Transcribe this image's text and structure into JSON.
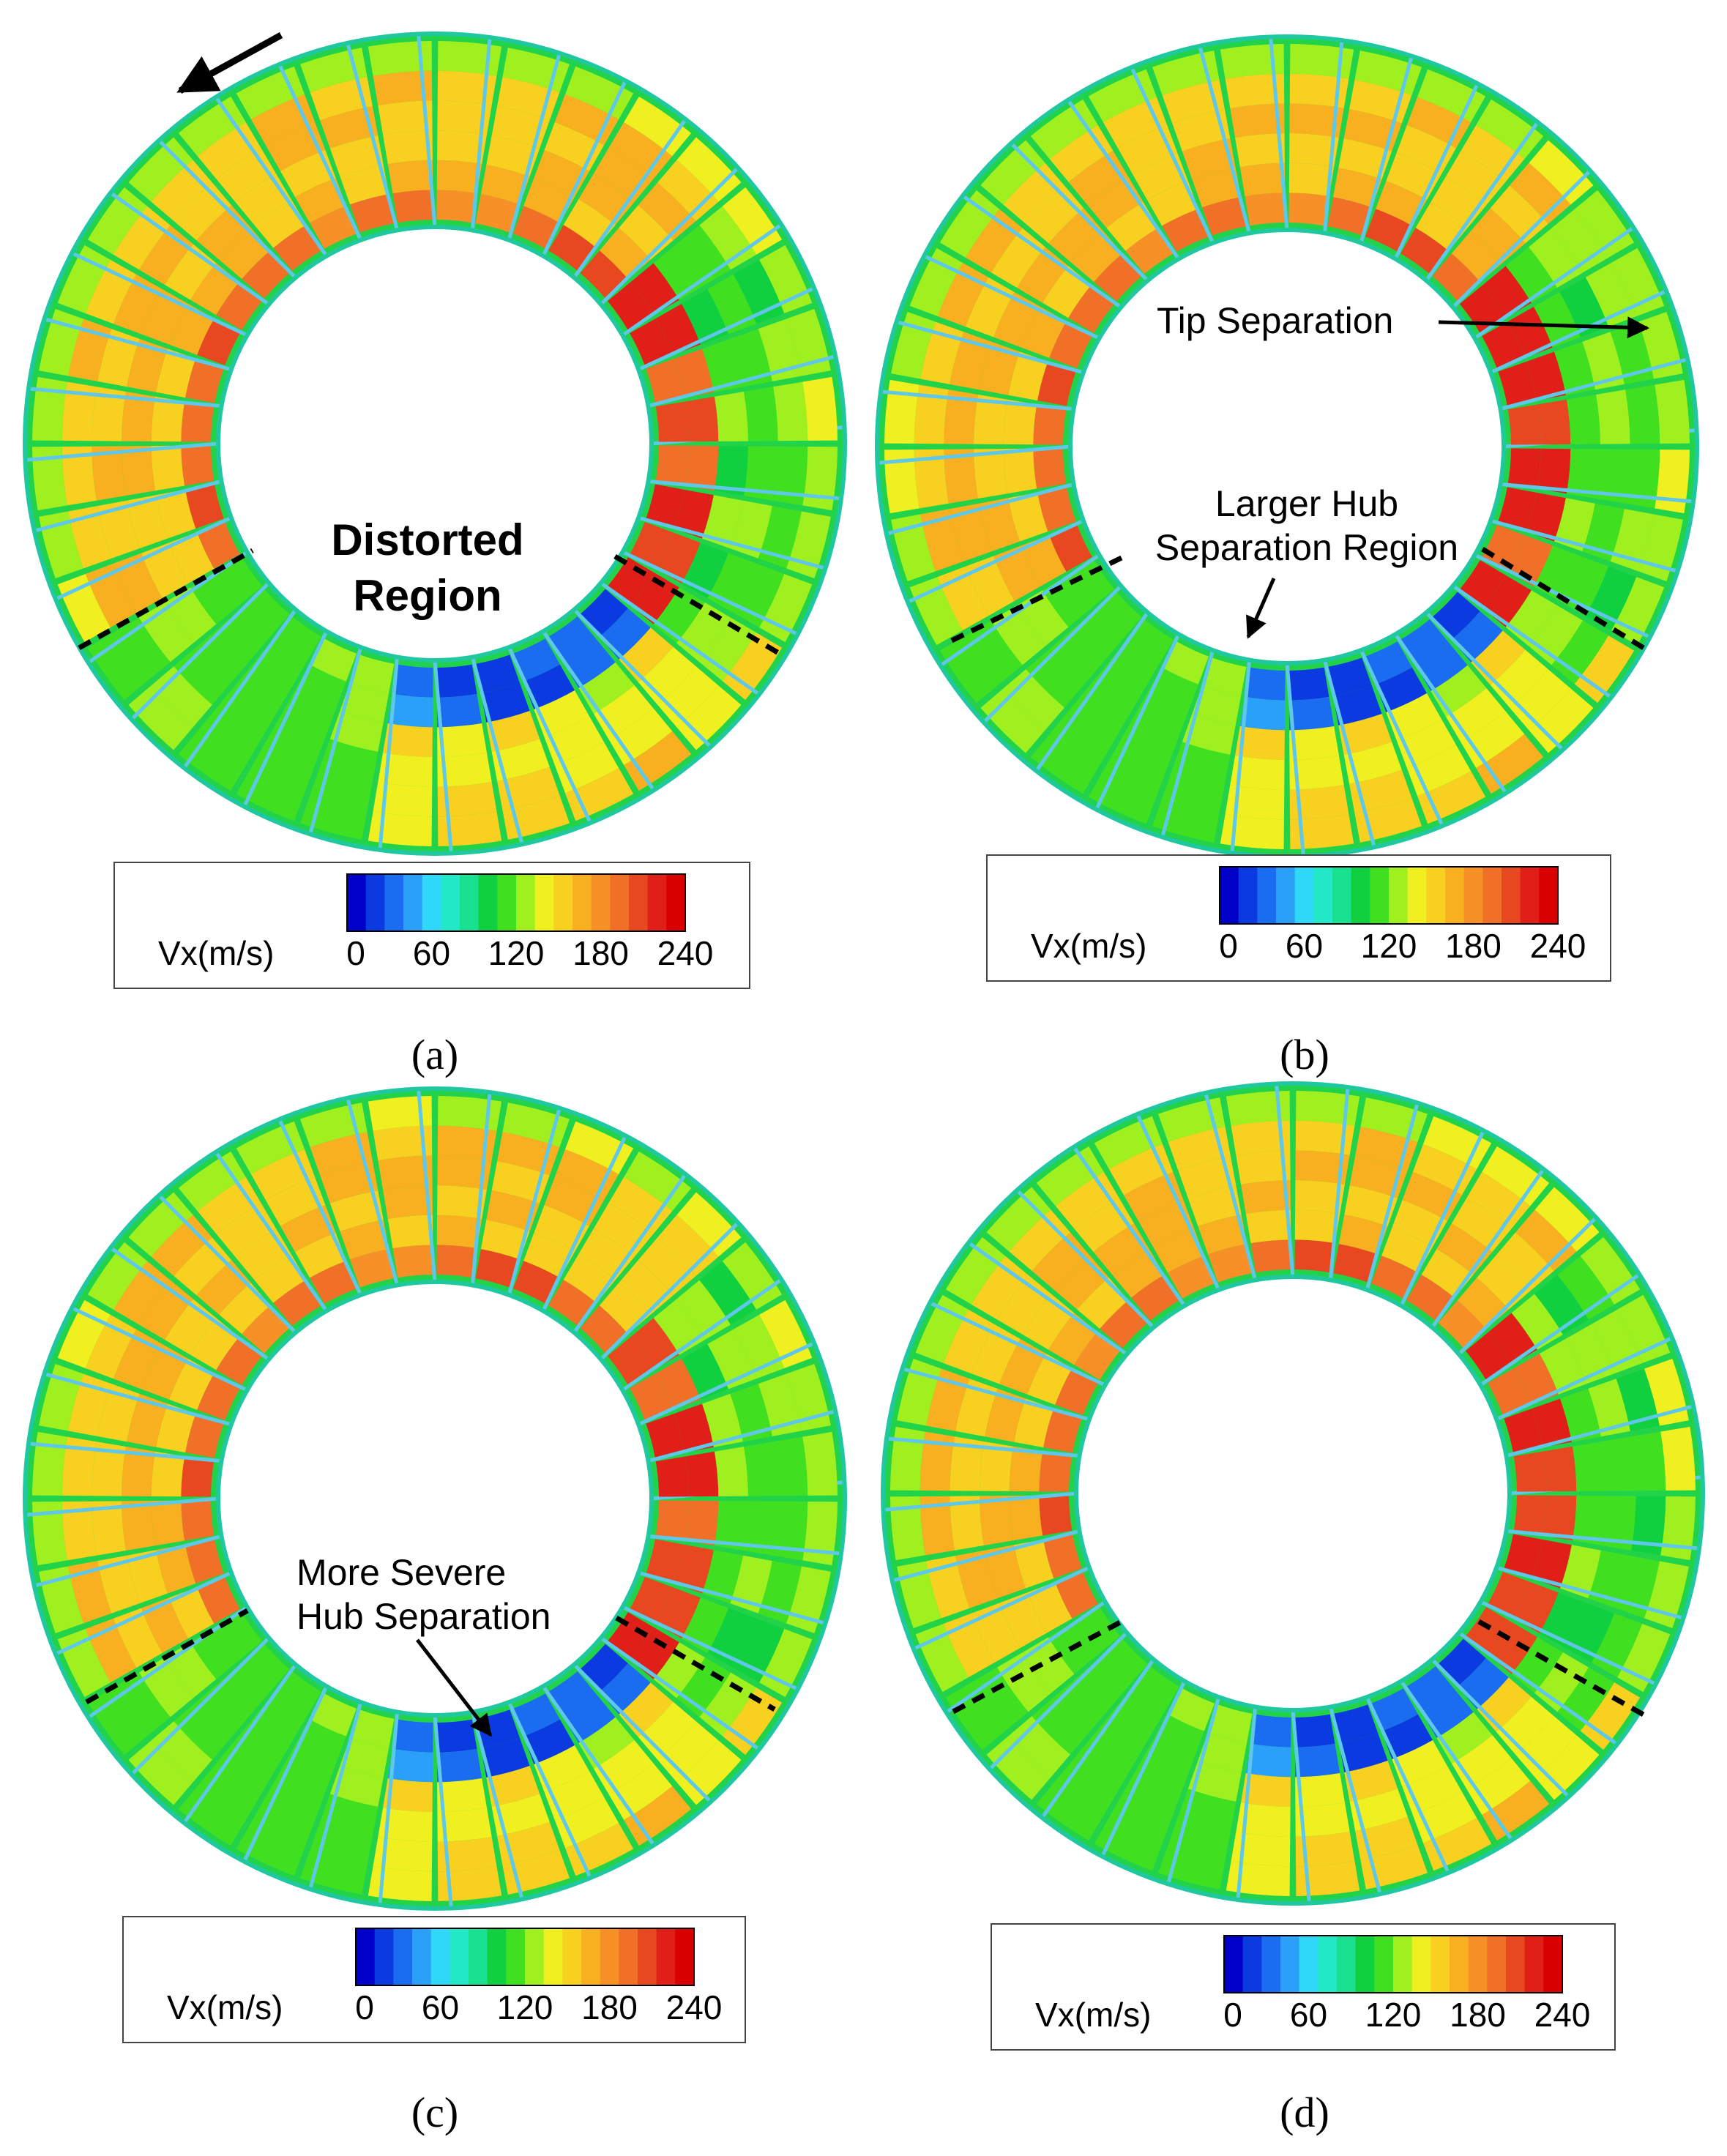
{
  "figure": {
    "rotation_direction_arrow": "counter-clockwise"
  },
  "panels": [
    {
      "id": "a",
      "caption": "(a)",
      "legend": {
        "title": "Vx(m/s)",
        "ticks": [
          "0",
          "60",
          "120",
          "180",
          "240"
        ]
      },
      "annotations": [
        "Distorted",
        "Region"
      ]
    },
    {
      "id": "b",
      "caption": "(b)",
      "legend": {
        "title": "Vx(m/s)",
        "ticks": [
          "0",
          "60",
          "120",
          "180",
          "240"
        ]
      },
      "annotations": [
        "Tip Separation",
        "Larger Hub",
        "Separation Region"
      ]
    },
    {
      "id": "c",
      "caption": "(c)",
      "legend": {
        "title": "Vx(m/s)",
        "ticks": [
          "0",
          "60",
          "120",
          "180",
          "240"
        ]
      },
      "annotations": [
        "More Severe",
        "Hub Separation"
      ]
    },
    {
      "id": "d",
      "caption": "(d)",
      "legend": {
        "title": "Vx(m/s)",
        "ticks": [
          "0",
          "60",
          "120",
          "180",
          "240"
        ]
      },
      "annotations": []
    }
  ],
  "colormap": {
    "min": 0,
    "max": 240,
    "colors": [
      "#0000c8",
      "#0a3ae0",
      "#1a6cf0",
      "#2aa0f8",
      "#2fd8f8",
      "#22e8c8",
      "#18e090",
      "#10d040",
      "#40e020",
      "#a0f020",
      "#f0f020",
      "#f8d020",
      "#f8b020",
      "#f89028",
      "#f07028",
      "#e84820",
      "#e02018",
      "#d80000"
    ]
  }
}
